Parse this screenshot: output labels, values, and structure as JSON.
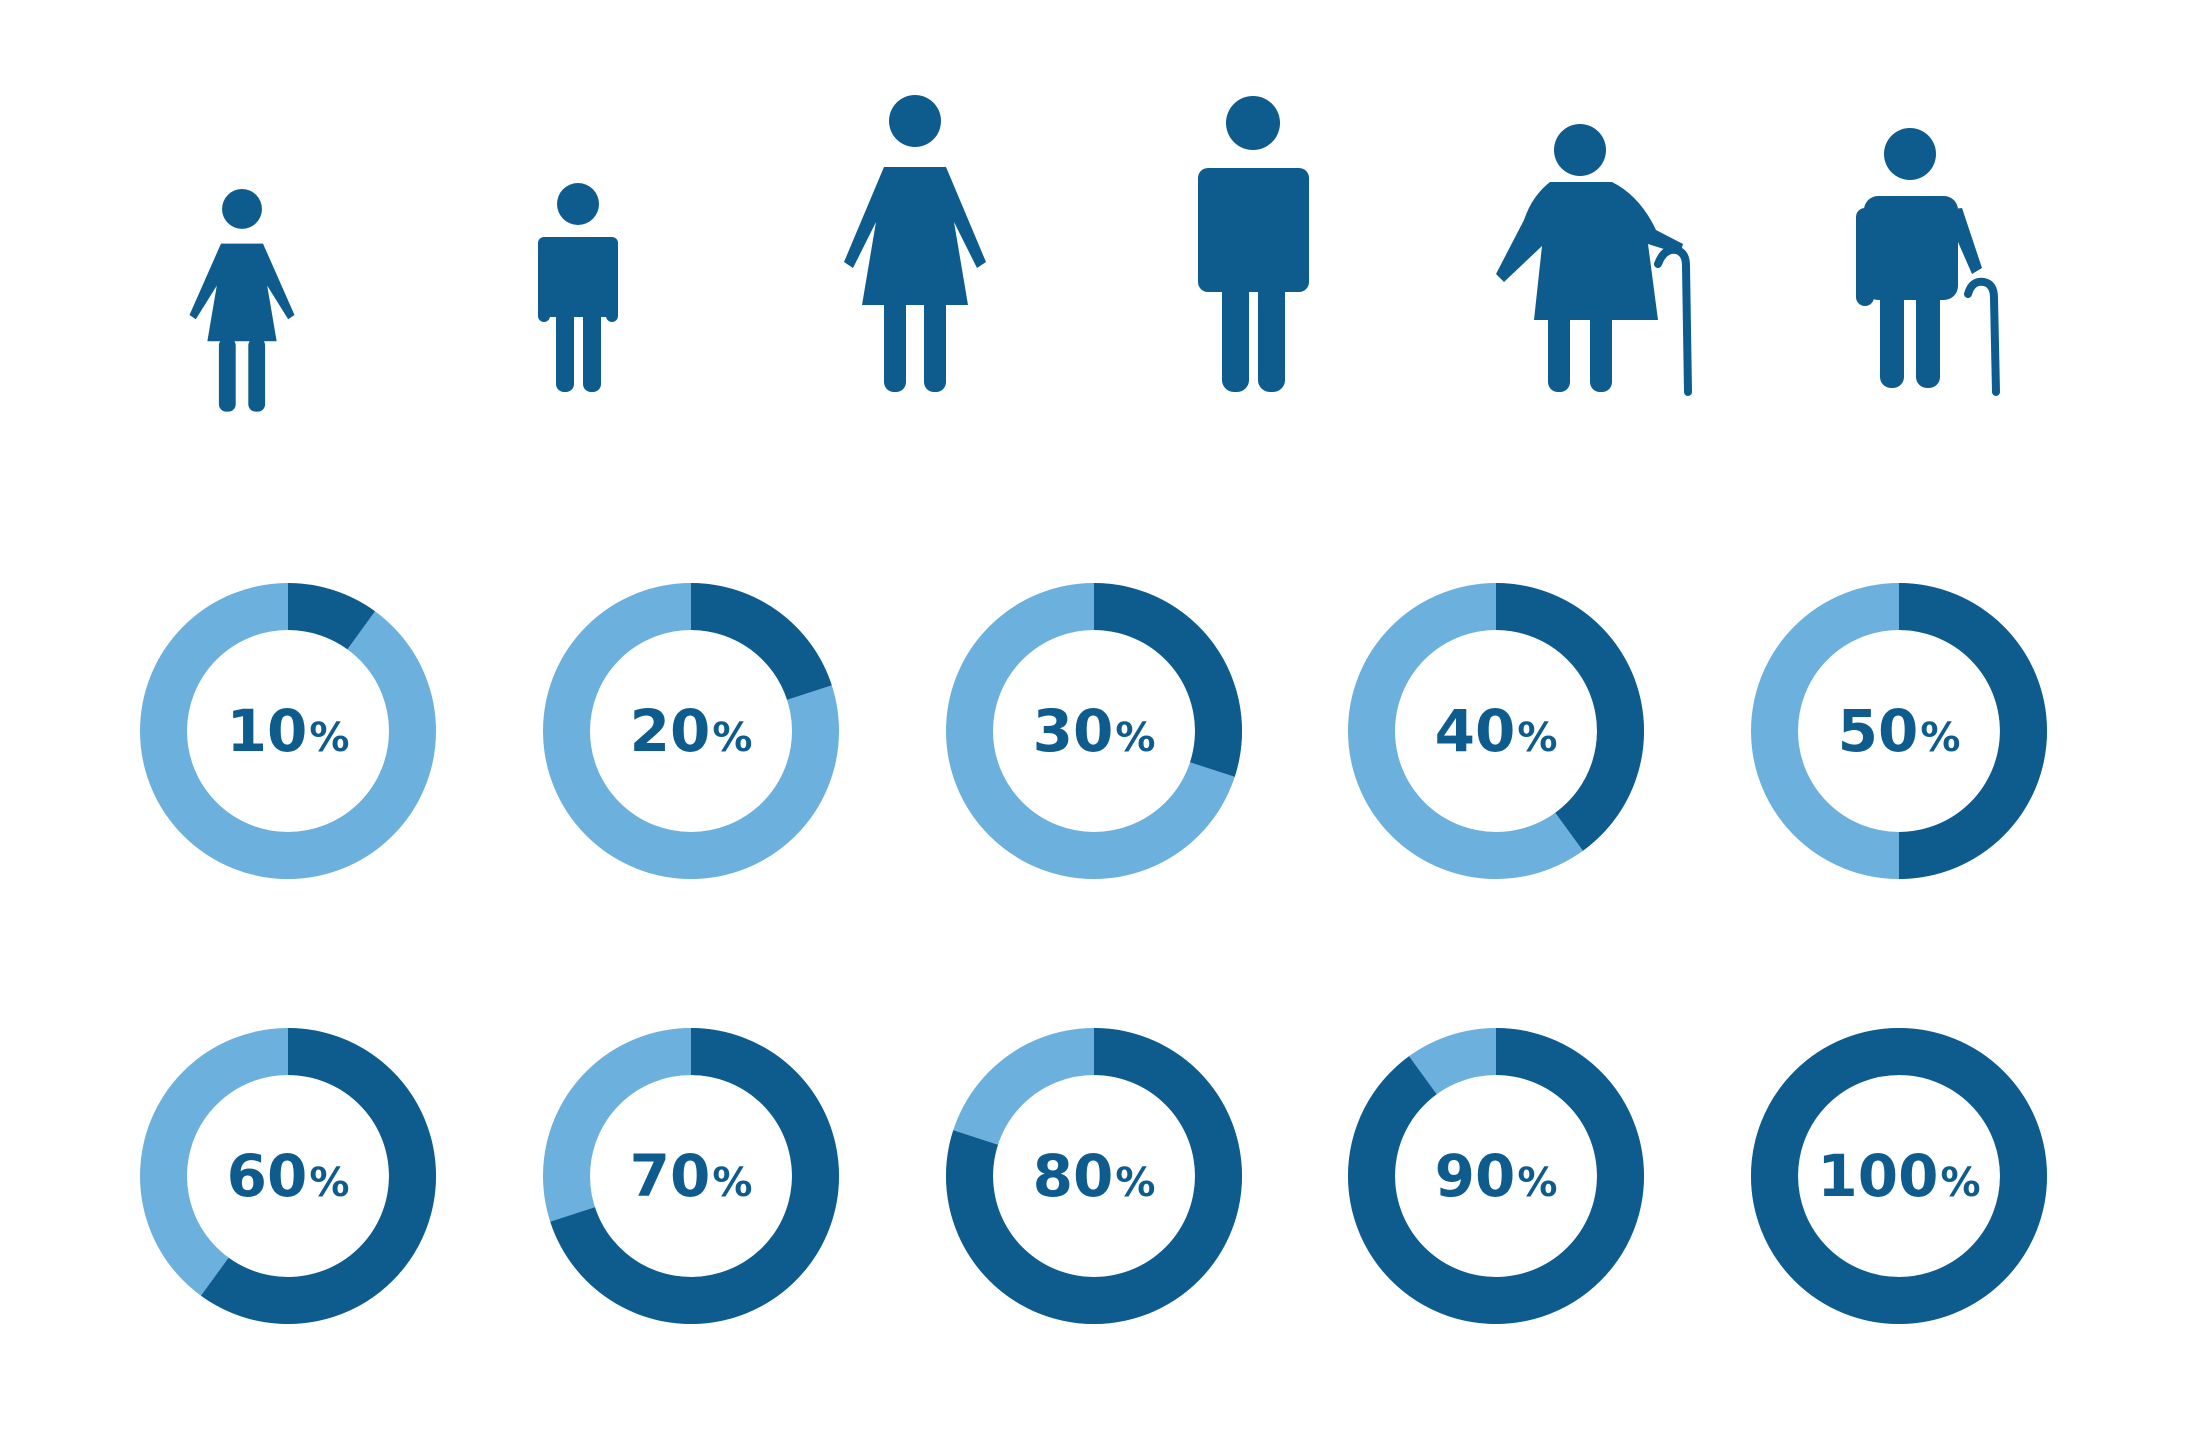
{
  "colors": {
    "dark": "#0e5b8e",
    "light": "#6cb0dd",
    "text": "#0e5b8e",
    "background": "#ffffff"
  },
  "figures": [
    {
      "name": "girl-icon"
    },
    {
      "name": "boy-icon"
    },
    {
      "name": "woman-icon"
    },
    {
      "name": "man-icon"
    },
    {
      "name": "elderly-woman-with-cane-icon"
    },
    {
      "name": "elderly-man-with-cane-icon"
    }
  ],
  "chart_data": {
    "type": "pie",
    "variant": "donut",
    "grid": false,
    "legend": "none",
    "charts": [
      {
        "value": 10,
        "number": "10",
        "symbol": "%"
      },
      {
        "value": 20,
        "number": "20",
        "symbol": "%"
      },
      {
        "value": 30,
        "number": "30",
        "symbol": "%"
      },
      {
        "value": 40,
        "number": "40",
        "symbol": "%"
      },
      {
        "value": 50,
        "number": "50",
        "symbol": "%"
      },
      {
        "value": 60,
        "number": "60",
        "symbol": "%"
      },
      {
        "value": 70,
        "number": "70",
        "symbol": "%"
      },
      {
        "value": 80,
        "number": "80",
        "symbol": "%"
      },
      {
        "value": 90,
        "number": "90",
        "symbol": "%"
      },
      {
        "value": 100,
        "number": "100",
        "symbol": "%"
      }
    ]
  }
}
